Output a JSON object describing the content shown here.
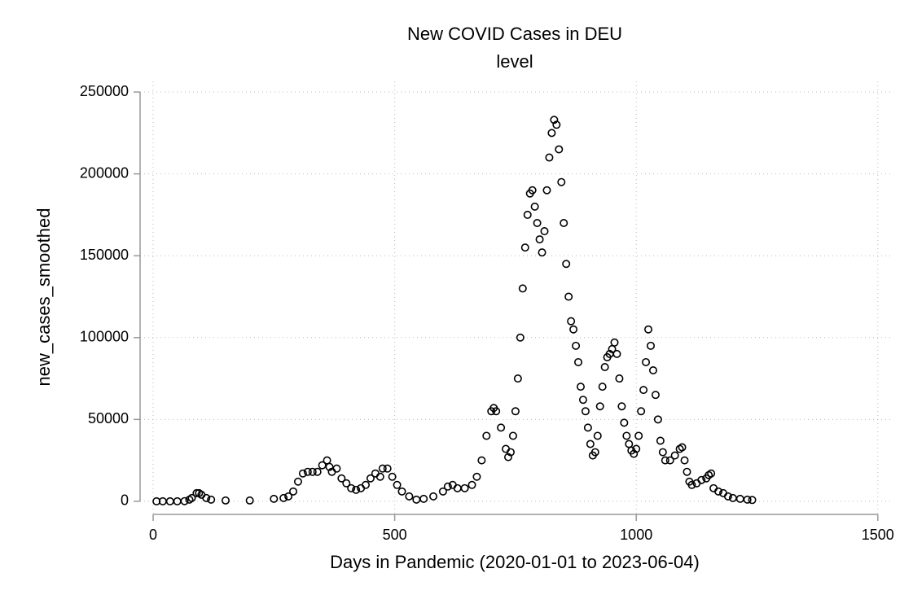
{
  "chart_data": {
    "type": "scatter",
    "title": "New COVID Cases in DEU",
    "subtitle": "level",
    "x_label": "Days in Pandemic (2020-01-01 to 2023-06-04)",
    "y_label": "new_cases_smoothed",
    "xlim": [
      -27,
      1529
    ],
    "ylim": [
      -8000,
      256500
    ],
    "xticks": [
      0,
      500,
      1000,
      1500
    ],
    "yticks": [
      0,
      50000,
      100000,
      150000,
      200000,
      250000
    ],
    "grid": true,
    "series": [
      {
        "name": "new_cases_smoothed",
        "color": "#000000",
        "x": [
          7,
          20,
          35,
          50,
          65,
          75,
          80,
          90,
          95,
          100,
          110,
          120,
          150,
          200,
          250,
          270,
          280,
          290,
          300,
          310,
          320,
          330,
          340,
          350,
          360,
          365,
          370,
          380,
          390,
          400,
          410,
          420,
          430,
          440,
          450,
          460,
          470,
          475,
          485,
          495,
          505,
          515,
          530,
          545,
          560,
          580,
          600,
          610,
          620,
          630,
          645,
          660,
          670,
          680,
          690,
          700,
          705,
          710,
          720,
          730,
          735,
          740,
          745,
          750,
          755,
          760,
          765,
          770,
          775,
          780,
          785,
          790,
          795,
          800,
          805,
          810,
          815,
          820,
          825,
          830,
          835,
          840,
          845,
          850,
          855,
          860,
          865,
          870,
          875,
          880,
          885,
          890,
          895,
          900,
          905,
          910,
          915,
          920,
          925,
          930,
          935,
          940,
          945,
          950,
          955,
          960,
          965,
          970,
          975,
          980,
          985,
          990,
          995,
          1000,
          1005,
          1010,
          1015,
          1020,
          1025,
          1030,
          1035,
          1040,
          1045,
          1050,
          1055,
          1060,
          1070,
          1080,
          1090,
          1095,
          1100,
          1105,
          1110,
          1115,
          1125,
          1135,
          1145,
          1150,
          1155,
          1160,
          1170,
          1180,
          1190,
          1200,
          1215,
          1230,
          1240
        ],
        "values": [
          0,
          0,
          0,
          0,
          100,
          1000,
          2000,
          5000,
          5000,
          4000,
          2000,
          1000,
          500,
          500,
          1500,
          2000,
          3000,
          6000,
          12000,
          17000,
          18000,
          18000,
          18000,
          22000,
          25000,
          21000,
          18000,
          20000,
          14000,
          11000,
          8000,
          7000,
          8000,
          10000,
          14000,
          17000,
          15000,
          20000,
          20000,
          15000,
          10000,
          6000,
          3000,
          1000,
          1500,
          3000,
          6000,
          9000,
          10000,
          8000,
          8000,
          10000,
          15000,
          25000,
          40000,
          55000,
          57000,
          55000,
          45000,
          32000,
          27000,
          30000,
          40000,
          55000,
          75000,
          100000,
          130000,
          155000,
          175000,
          188000,
          190000,
          180000,
          170000,
          160000,
          152000,
          165000,
          190000,
          210000,
          225000,
          233000,
          230000,
          215000,
          195000,
          170000,
          145000,
          125000,
          110000,
          105000,
          95000,
          85000,
          70000,
          62000,
          55000,
          45000,
          35000,
          28000,
          30000,
          40000,
          58000,
          70000,
          82000,
          88000,
          90000,
          93000,
          97000,
          90000,
          75000,
          58000,
          48000,
          40000,
          35000,
          31000,
          29000,
          32000,
          40000,
          55000,
          68000,
          85000,
          105000,
          95000,
          80000,
          65000,
          50000,
          37000,
          30000,
          25000,
          25000,
          28000,
          32000,
          33000,
          25000,
          18000,
          12000,
          10000,
          11000,
          13000,
          14000,
          16000,
          17000,
          8000,
          6000,
          5000,
          3000,
          2000,
          1500,
          1000,
          800
        ]
      }
    ]
  }
}
